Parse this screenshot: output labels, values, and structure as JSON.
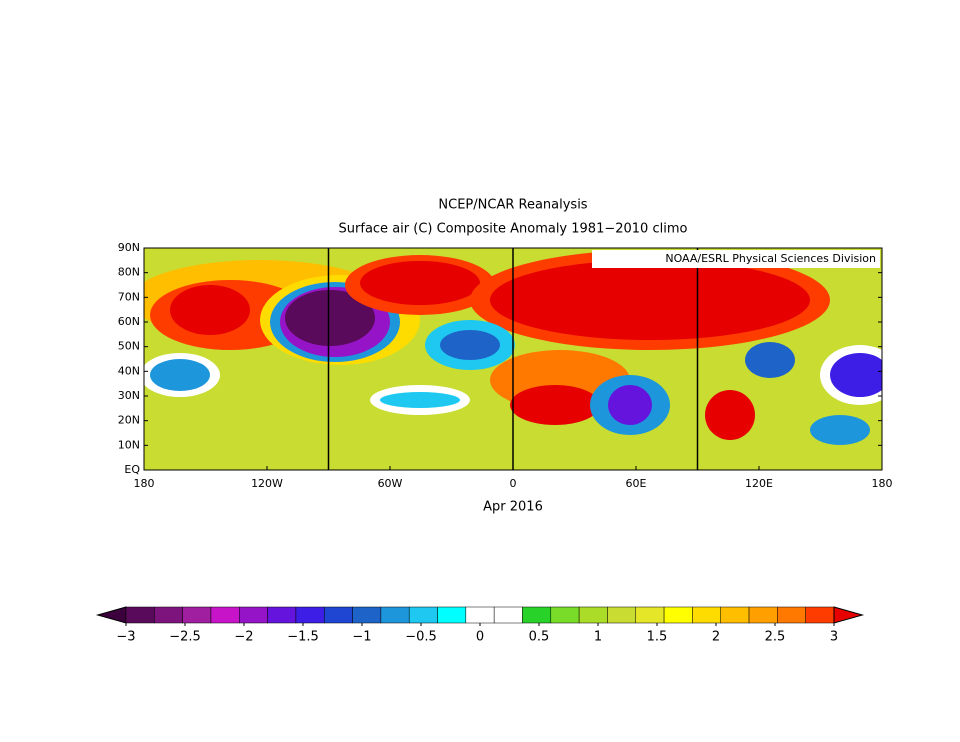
{
  "title_lines": [
    "NCEP/NCAR Reanalysis",
    "Surface air (C) Composite Anomaly 1981−2010 climo"
  ],
  "credit": "NOAA/ESRL Physical Sciences Division",
  "x_label": "Apr 2016",
  "lat_ticks": [
    "90N",
    "80N",
    "70N",
    "60N",
    "50N",
    "40N",
    "30N",
    "20N",
    "10N",
    "EQ"
  ],
  "lon_ticks": [
    "180",
    "120W",
    "60W",
    "0",
    "60E",
    "120E",
    "180"
  ],
  "colorbar": {
    "colors": [
      "#3c003c",
      "#5a0a5a",
      "#7d147d",
      "#a01ea0",
      "#c814c8",
      "#9614c8",
      "#6414dc",
      "#3c1ee6",
      "#1e46d2",
      "#1e64c8",
      "#1e96dc",
      "#1ec8f0",
      "#00ffff",
      "#ffffff",
      "#ffffff",
      "#28d228",
      "#78dc28",
      "#aadc28",
      "#c8dc32",
      "#e6e628",
      "#ffff00",
      "#ffdc00",
      "#ffbe00",
      "#ffa000",
      "#ff7800",
      "#ff3c00",
      "#e60000"
    ],
    "ticks": [
      {
        "value": -3,
        "label": "−3"
      },
      {
        "value": -2.5,
        "label": "−2.5"
      },
      {
        "value": -2,
        "label": "−2"
      },
      {
        "value": -1.5,
        "label": "−1.5"
      },
      {
        "value": -1,
        "label": "−1"
      },
      {
        "value": -0.5,
        "label": "−0.5"
      },
      0,
      0.5,
      1,
      1.5,
      2,
      2.5,
      3
    ]
  }
}
